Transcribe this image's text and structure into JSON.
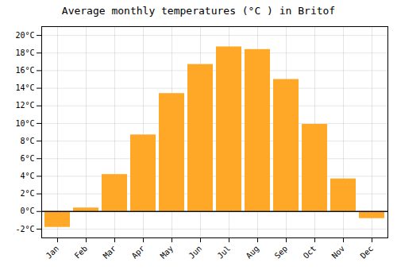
{
  "chart_data": {
    "type": "bar",
    "title": "Average monthly temperatures (°C ) in Britof",
    "categories": [
      "Jan",
      "Feb",
      "Mar",
      "Apr",
      "May",
      "Jun",
      "Jul",
      "Aug",
      "Sep",
      "Oct",
      "Nov",
      "Dec"
    ],
    "values": [
      -1.8,
      0.4,
      4.2,
      8.7,
      13.4,
      16.7,
      18.7,
      18.4,
      15.0,
      9.9,
      3.7,
      -0.8
    ],
    "color": "#FFA726",
    "ylim": [
      -3,
      21
    ],
    "yticks": [
      {
        "value": -2,
        "label": "-2°C"
      },
      {
        "value": 0,
        "label": "0°C"
      },
      {
        "value": 2,
        "label": "2°C"
      },
      {
        "value": 4,
        "label": "4°C"
      },
      {
        "value": 6,
        "label": "6°C"
      },
      {
        "value": 8,
        "label": "8°C"
      },
      {
        "value": 10,
        "label": "10°C"
      },
      {
        "value": 12,
        "label": "12°C"
      },
      {
        "value": 14,
        "label": "14°C"
      },
      {
        "value": 16,
        "label": "16°C"
      },
      {
        "value": 18,
        "label": "18°C"
      },
      {
        "value": 20,
        "label": "20°C"
      }
    ],
    "grid": true
  }
}
